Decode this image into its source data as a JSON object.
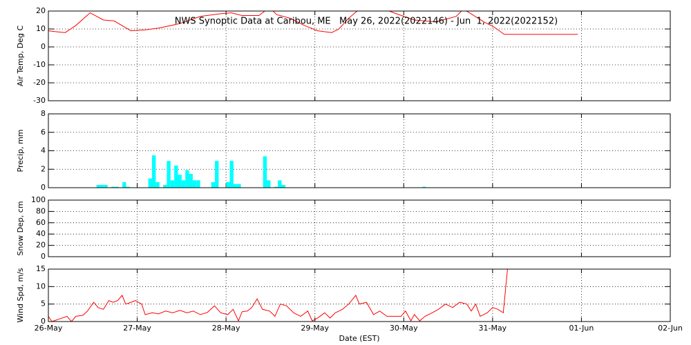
{
  "chart_data": [
    {
      "type": "line",
      "title": "NWS Synoptic Data at Caribou, ME   May 26, 2022(2022146) - Jun  1, 2022(2022152)",
      "ylabel": "Air Temp, Deg C",
      "ylim": [
        -30,
        20
      ],
      "yticks": [
        -30,
        -20,
        -10,
        0,
        10,
        20
      ],
      "grid": true,
      "series": [
        {
          "color": "#ff0000",
          "x": [
            146.0,
            146.08,
            146.19,
            146.31,
            146.47,
            146.62,
            146.74,
            146.86,
            146.93,
            147.09,
            147.24,
            147.48,
            147.71,
            147.94,
            148.06,
            148.18,
            148.37,
            148.49,
            148.57,
            148.72,
            148.88,
            149.03,
            149.19,
            149.27,
            149.38,
            149.5,
            149.73,
            149.89,
            150.12,
            150.36,
            150.59,
            150.67,
            150.74,
            150.9,
            151.02,
            151.13,
            151.96
          ],
          "values": [
            9,
            8.5,
            8,
            12,
            19,
            15,
            14.5,
            11,
            9,
            9.5,
            10.5,
            13,
            17,
            18.5,
            19,
            17.5,
            17.5,
            22,
            18,
            16,
            12,
            9,
            8,
            10,
            16,
            21,
            22,
            19,
            15,
            14,
            17,
            21,
            19,
            14,
            11,
            7,
            7
          ]
        }
      ]
    },
    {
      "type": "bar",
      "ylabel": "Precip, mm",
      "ylim": [
        0,
        8
      ],
      "yticks": [
        0,
        2,
        4,
        6,
        8
      ],
      "grid": true,
      "series": [
        {
          "color": "#00ffff",
          "x": [
            146.5417,
            146.5833,
            146.625,
            146.7083,
            146.75,
            146.8333,
            146.875,
            147.125,
            147.1667,
            147.2083,
            147.2917,
            147.3333,
            147.375,
            147.4167,
            147.4583,
            147.5,
            147.5417,
            147.5833,
            147.625,
            147.6667,
            147.8333,
            147.875,
            148.0,
            148.0417,
            148.0833,
            148.125,
            148.4167,
            148.4583,
            148.5417,
            148.5833,
            148.625,
            150.2083
          ],
          "values": [
            0.3,
            0.3,
            0.3,
            0.1,
            0.1,
            0.6,
            0.1,
            1.0,
            3.5,
            0.6,
            0.3,
            2.9,
            0.8,
            2.4,
            1.4,
            0.8,
            1.9,
            1.5,
            0.8,
            0.8,
            0.6,
            2.9,
            0.6,
            2.9,
            0.4,
            0.4,
            3.4,
            0.8,
            0.1,
            0.8,
            0.3,
            0.1
          ]
        }
      ]
    },
    {
      "type": "line",
      "ylabel": "Snow Dep, cm",
      "ylim": [
        0,
        100
      ],
      "yticks": [
        0,
        20,
        40,
        60,
        80,
        100
      ],
      "grid": true
    },
    {
      "type": "line",
      "ylabel": "Wind Spd, m/s",
      "xlabel": "Date (EST)",
      "ylim": [
        0,
        15
      ],
      "yticks": [
        0,
        5,
        10,
        15
      ],
      "grid": true,
      "xlim": [
        146,
        153
      ],
      "xticks": [
        {
          "value": 146,
          "label": "26-May"
        },
        {
          "value": 147,
          "label": "27-May"
        },
        {
          "value": 148,
          "label": "28-May"
        },
        {
          "value": 149,
          "label": "29-May"
        },
        {
          "value": 150,
          "label": "30-May"
        },
        {
          "value": 151,
          "label": "31-May"
        },
        {
          "value": 152,
          "label": "01-Jun"
        },
        {
          "value": 153,
          "label": "02-Jun"
        }
      ],
      "series": [
        {
          "color": "#ff0000",
          "x": [
            146.0,
            146.04,
            146.21,
            146.26,
            146.31,
            146.39,
            146.44,
            146.51,
            146.56,
            146.62,
            146.68,
            146.73,
            146.78,
            146.83,
            146.87,
            146.93,
            146.98,
            147.05,
            147.09,
            147.17,
            147.24,
            147.32,
            147.4,
            147.48,
            147.56,
            147.63,
            147.71,
            147.79,
            147.87,
            147.94,
            148.02,
            148.08,
            148.14,
            148.18,
            148.24,
            148.29,
            148.35,
            148.41,
            148.49,
            148.55,
            148.61,
            148.68,
            148.76,
            148.84,
            148.92,
            148.97,
            149.03,
            149.11,
            149.17,
            149.23,
            149.31,
            149.38,
            149.46,
            149.5,
            149.58,
            149.66,
            149.73,
            149.81,
            149.89,
            149.97,
            150.02,
            150.08,
            150.12,
            150.18,
            150.24,
            150.32,
            150.39,
            150.47,
            150.55,
            150.63,
            150.71,
            150.76,
            150.81,
            150.86,
            150.94,
            151.0,
            151.06,
            151.12,
            151.17
          ],
          "values": [
            1.5,
            0,
            1.5,
            0,
            1.5,
            1.8,
            3,
            5.5,
            4,
            3.5,
            6,
            5.5,
            6,
            7.5,
            5,
            5.5,
            6,
            5,
            2,
            2.5,
            2.2,
            3,
            2.5,
            3.2,
            2.5,
            3,
            2,
            2.6,
            4.5,
            2.5,
            2,
            3.5,
            0.2,
            2.8,
            3,
            4,
            6.5,
            3.5,
            3,
            1.5,
            5,
            4.5,
            2.5,
            1.5,
            3,
            0.2,
            1,
            2.5,
            1,
            2.5,
            3.5,
            5,
            7.5,
            5,
            5.5,
            2,
            3,
            1.5,
            1.5,
            1.5,
            3,
            0.2,
            2,
            0.2,
            1.5,
            2.5,
            3.5,
            5,
            4,
            5.5,
            5,
            3,
            5,
            1.5,
            2.5,
            4,
            3.5,
            2.5,
            15.5
          ]
        }
      ]
    }
  ]
}
